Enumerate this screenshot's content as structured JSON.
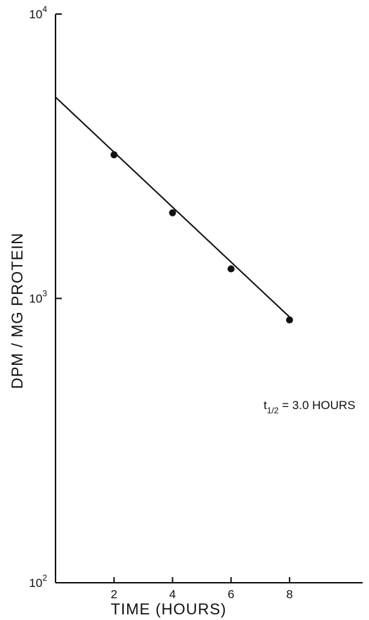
{
  "chart_data": {
    "type": "scatter",
    "x_axis": {
      "label": "TIME (HOURS)",
      "range": [
        0,
        10.5
      ],
      "ticks": [
        2,
        4,
        6,
        8
      ],
      "tick_labels": [
        "2",
        "4",
        "6",
        "8"
      ]
    },
    "y_axis": {
      "label": "DPM / MG  PROTEIN",
      "scale": "log",
      "range": [
        100,
        10000
      ],
      "ticks": [
        100,
        1000,
        10000
      ],
      "tick_labels": [
        {
          "base": "10",
          "exp": "2"
        },
        {
          "base": "10",
          "exp": "3"
        },
        {
          "base": "10",
          "exp": "4"
        }
      ]
    },
    "series": [
      {
        "points": [
          {
            "x": 2,
            "y": 3200
          },
          {
            "x": 4,
            "y": 2000
          },
          {
            "x": 6,
            "y": 1270
          },
          {
            "x": 8,
            "y": 840
          }
        ]
      }
    ],
    "fit_line": {
      "type": "exponential decay",
      "x": [
        0,
        8
      ],
      "y": [
        5100,
        860
      ]
    },
    "annotation": {
      "prefix": "t",
      "subscript": "1/2",
      "text": " = 3.0 HOURS"
    },
    "grid": false,
    "legend": "none",
    "colors": {
      "ink": "#111111",
      "background": "#ffffff"
    }
  }
}
